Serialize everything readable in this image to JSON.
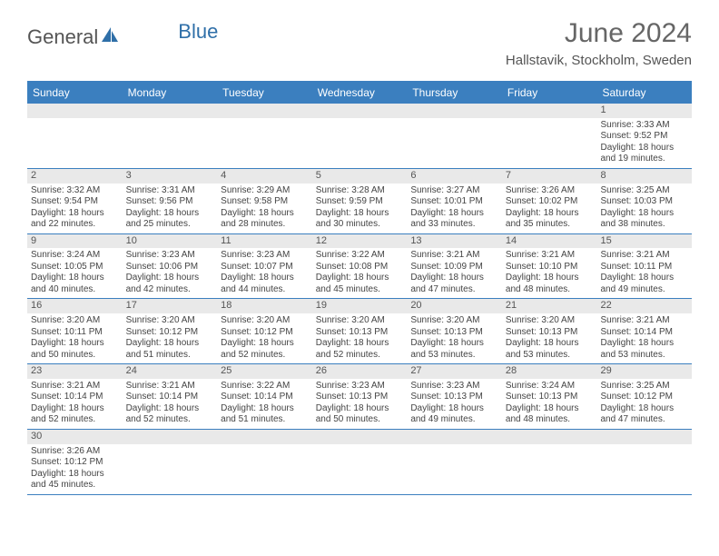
{
  "brand": {
    "text_general": "General",
    "text_blue": "Blue"
  },
  "title": "June 2024",
  "location": "Hallstavik, Stockholm, Sweden",
  "days_of_week": [
    "Sunday",
    "Monday",
    "Tuesday",
    "Wednesday",
    "Thursday",
    "Friday",
    "Saturday"
  ],
  "colors": {
    "header_bg": "#3b7fbf",
    "header_text": "#ffffff",
    "daynum_bg": "#e9e9e9",
    "border": "#3b7fbf"
  },
  "weeks": [
    [
      {
        "n": "",
        "sunrise": "",
        "sunset": "",
        "daylight": ""
      },
      {
        "n": "",
        "sunrise": "",
        "sunset": "",
        "daylight": ""
      },
      {
        "n": "",
        "sunrise": "",
        "sunset": "",
        "daylight": ""
      },
      {
        "n": "",
        "sunrise": "",
        "sunset": "",
        "daylight": ""
      },
      {
        "n": "",
        "sunrise": "",
        "sunset": "",
        "daylight": ""
      },
      {
        "n": "",
        "sunrise": "",
        "sunset": "",
        "daylight": ""
      },
      {
        "n": "1",
        "sunrise": "Sunrise: 3:33 AM",
        "sunset": "Sunset: 9:52 PM",
        "daylight": "Daylight: 18 hours and 19 minutes."
      }
    ],
    [
      {
        "n": "2",
        "sunrise": "Sunrise: 3:32 AM",
        "sunset": "Sunset: 9:54 PM",
        "daylight": "Daylight: 18 hours and 22 minutes."
      },
      {
        "n": "3",
        "sunrise": "Sunrise: 3:31 AM",
        "sunset": "Sunset: 9:56 PM",
        "daylight": "Daylight: 18 hours and 25 minutes."
      },
      {
        "n": "4",
        "sunrise": "Sunrise: 3:29 AM",
        "sunset": "Sunset: 9:58 PM",
        "daylight": "Daylight: 18 hours and 28 minutes."
      },
      {
        "n": "5",
        "sunrise": "Sunrise: 3:28 AM",
        "sunset": "Sunset: 9:59 PM",
        "daylight": "Daylight: 18 hours and 30 minutes."
      },
      {
        "n": "6",
        "sunrise": "Sunrise: 3:27 AM",
        "sunset": "Sunset: 10:01 PM",
        "daylight": "Daylight: 18 hours and 33 minutes."
      },
      {
        "n": "7",
        "sunrise": "Sunrise: 3:26 AM",
        "sunset": "Sunset: 10:02 PM",
        "daylight": "Daylight: 18 hours and 35 minutes."
      },
      {
        "n": "8",
        "sunrise": "Sunrise: 3:25 AM",
        "sunset": "Sunset: 10:03 PM",
        "daylight": "Daylight: 18 hours and 38 minutes."
      }
    ],
    [
      {
        "n": "9",
        "sunrise": "Sunrise: 3:24 AM",
        "sunset": "Sunset: 10:05 PM",
        "daylight": "Daylight: 18 hours and 40 minutes."
      },
      {
        "n": "10",
        "sunrise": "Sunrise: 3:23 AM",
        "sunset": "Sunset: 10:06 PM",
        "daylight": "Daylight: 18 hours and 42 minutes."
      },
      {
        "n": "11",
        "sunrise": "Sunrise: 3:23 AM",
        "sunset": "Sunset: 10:07 PM",
        "daylight": "Daylight: 18 hours and 44 minutes."
      },
      {
        "n": "12",
        "sunrise": "Sunrise: 3:22 AM",
        "sunset": "Sunset: 10:08 PM",
        "daylight": "Daylight: 18 hours and 45 minutes."
      },
      {
        "n": "13",
        "sunrise": "Sunrise: 3:21 AM",
        "sunset": "Sunset: 10:09 PM",
        "daylight": "Daylight: 18 hours and 47 minutes."
      },
      {
        "n": "14",
        "sunrise": "Sunrise: 3:21 AM",
        "sunset": "Sunset: 10:10 PM",
        "daylight": "Daylight: 18 hours and 48 minutes."
      },
      {
        "n": "15",
        "sunrise": "Sunrise: 3:21 AM",
        "sunset": "Sunset: 10:11 PM",
        "daylight": "Daylight: 18 hours and 49 minutes."
      }
    ],
    [
      {
        "n": "16",
        "sunrise": "Sunrise: 3:20 AM",
        "sunset": "Sunset: 10:11 PM",
        "daylight": "Daylight: 18 hours and 50 minutes."
      },
      {
        "n": "17",
        "sunrise": "Sunrise: 3:20 AM",
        "sunset": "Sunset: 10:12 PM",
        "daylight": "Daylight: 18 hours and 51 minutes."
      },
      {
        "n": "18",
        "sunrise": "Sunrise: 3:20 AM",
        "sunset": "Sunset: 10:12 PM",
        "daylight": "Daylight: 18 hours and 52 minutes."
      },
      {
        "n": "19",
        "sunrise": "Sunrise: 3:20 AM",
        "sunset": "Sunset: 10:13 PM",
        "daylight": "Daylight: 18 hours and 52 minutes."
      },
      {
        "n": "20",
        "sunrise": "Sunrise: 3:20 AM",
        "sunset": "Sunset: 10:13 PM",
        "daylight": "Daylight: 18 hours and 53 minutes."
      },
      {
        "n": "21",
        "sunrise": "Sunrise: 3:20 AM",
        "sunset": "Sunset: 10:13 PM",
        "daylight": "Daylight: 18 hours and 53 minutes."
      },
      {
        "n": "22",
        "sunrise": "Sunrise: 3:21 AM",
        "sunset": "Sunset: 10:14 PM",
        "daylight": "Daylight: 18 hours and 53 minutes."
      }
    ],
    [
      {
        "n": "23",
        "sunrise": "Sunrise: 3:21 AM",
        "sunset": "Sunset: 10:14 PM",
        "daylight": "Daylight: 18 hours and 52 minutes."
      },
      {
        "n": "24",
        "sunrise": "Sunrise: 3:21 AM",
        "sunset": "Sunset: 10:14 PM",
        "daylight": "Daylight: 18 hours and 52 minutes."
      },
      {
        "n": "25",
        "sunrise": "Sunrise: 3:22 AM",
        "sunset": "Sunset: 10:14 PM",
        "daylight": "Daylight: 18 hours and 51 minutes."
      },
      {
        "n": "26",
        "sunrise": "Sunrise: 3:23 AM",
        "sunset": "Sunset: 10:13 PM",
        "daylight": "Daylight: 18 hours and 50 minutes."
      },
      {
        "n": "27",
        "sunrise": "Sunrise: 3:23 AM",
        "sunset": "Sunset: 10:13 PM",
        "daylight": "Daylight: 18 hours and 49 minutes."
      },
      {
        "n": "28",
        "sunrise": "Sunrise: 3:24 AM",
        "sunset": "Sunset: 10:13 PM",
        "daylight": "Daylight: 18 hours and 48 minutes."
      },
      {
        "n": "29",
        "sunrise": "Sunrise: 3:25 AM",
        "sunset": "Sunset: 10:12 PM",
        "daylight": "Daylight: 18 hours and 47 minutes."
      }
    ],
    [
      {
        "n": "30",
        "sunrise": "Sunrise: 3:26 AM",
        "sunset": "Sunset: 10:12 PM",
        "daylight": "Daylight: 18 hours and 45 minutes."
      },
      {
        "n": "",
        "sunrise": "",
        "sunset": "",
        "daylight": ""
      },
      {
        "n": "",
        "sunrise": "",
        "sunset": "",
        "daylight": ""
      },
      {
        "n": "",
        "sunrise": "",
        "sunset": "",
        "daylight": ""
      },
      {
        "n": "",
        "sunrise": "",
        "sunset": "",
        "daylight": ""
      },
      {
        "n": "",
        "sunrise": "",
        "sunset": "",
        "daylight": ""
      },
      {
        "n": "",
        "sunrise": "",
        "sunset": "",
        "daylight": ""
      }
    ]
  ]
}
